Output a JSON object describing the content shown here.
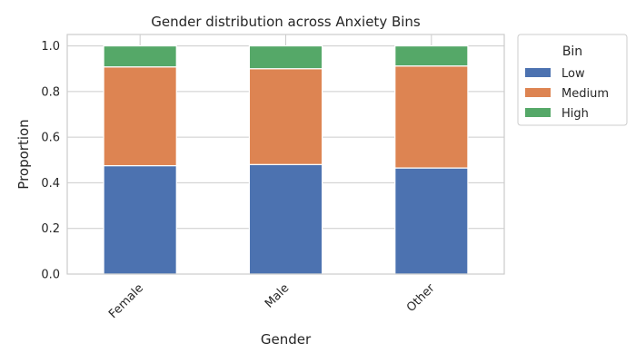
{
  "chart_data": {
    "type": "bar",
    "stacked": true,
    "title": "Gender distribution across Anxiety Bins",
    "xlabel": "Gender",
    "ylabel": "Proportion",
    "categories": [
      "Female",
      "Male",
      "Other"
    ],
    "series": [
      {
        "name": "Low",
        "color": "#4c72b0",
        "values": [
          0.475,
          0.48,
          0.465
        ]
      },
      {
        "name": "Medium",
        "color": "#dd8452",
        "values": [
          0.433,
          0.42,
          0.447
        ]
      },
      {
        "name": "High",
        "color": "#55a868",
        "values": [
          0.092,
          0.1,
          0.088
        ]
      }
    ],
    "ylim": [
      0,
      1.05
    ],
    "yticks": [
      0.0,
      0.2,
      0.4,
      0.6,
      0.8,
      1.0
    ],
    "ytick_labels": [
      "0.0",
      "0.2",
      "0.4",
      "0.6",
      "0.8",
      "1.0"
    ],
    "grid": true,
    "legend": {
      "title": "Bin",
      "placement": "outside-right-top"
    }
  }
}
